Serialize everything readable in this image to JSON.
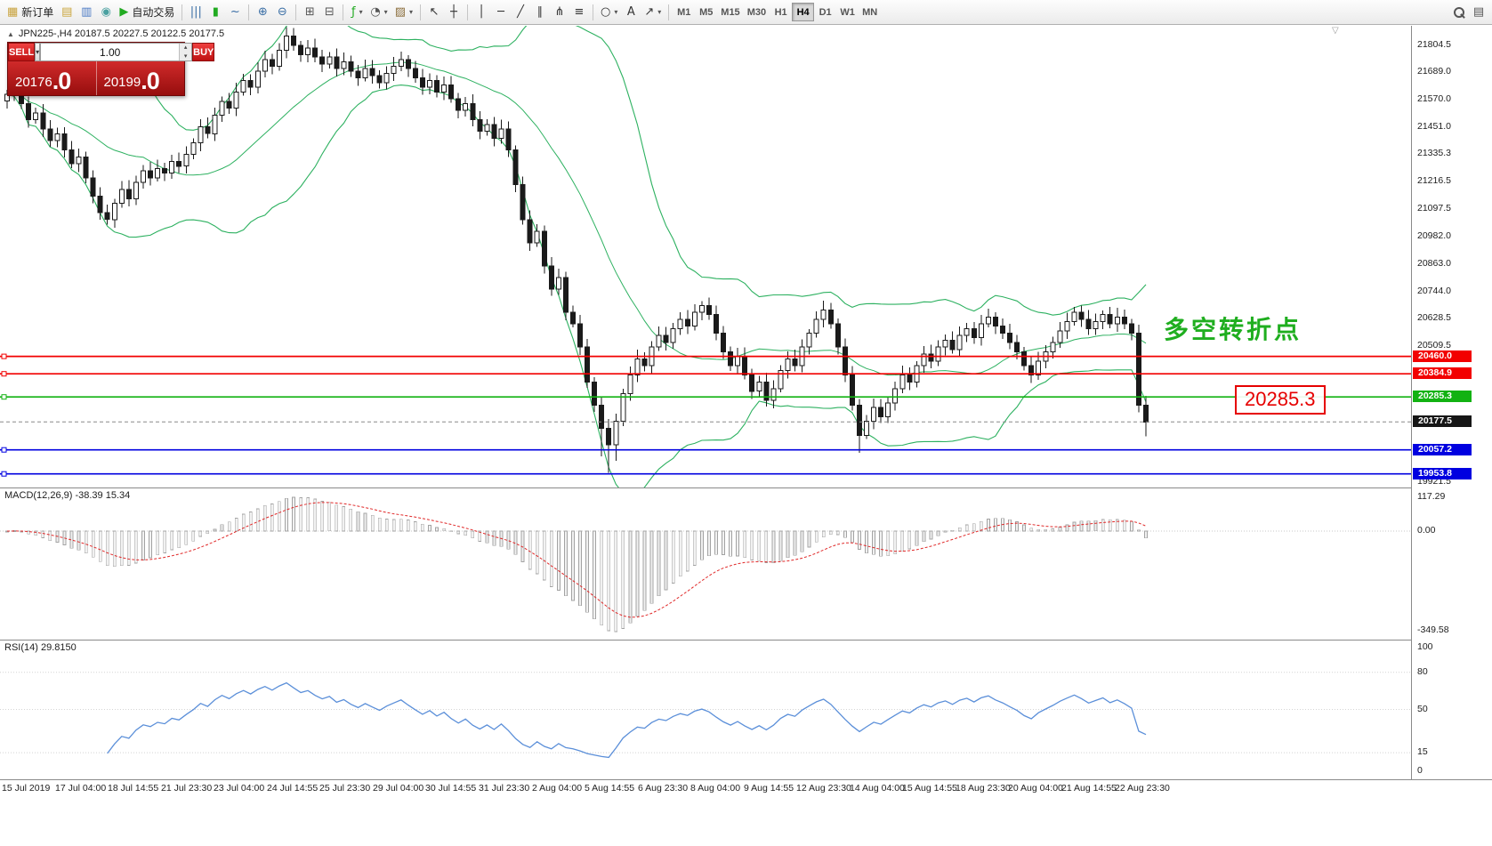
{
  "icons": {
    "chevron_down": "▾",
    "chevron_up": "▴",
    "triangle_up": "▲",
    "triangle_down_small": "▽",
    "data_window": "▤"
  },
  "toolbar": {
    "groups": [
      {
        "items": [
          {
            "name": "new-order-button",
            "icon": "new-order-icon",
            "glyph": "▦",
            "color": "#c8a23c",
            "label": "新订单"
          },
          {
            "name": "chart-window-button",
            "icon": "chart-window-icon",
            "glyph": "▤",
            "color": "#caa53c"
          },
          {
            "name": "profiles-button",
            "icon": "profiles-icon",
            "glyph": "▥",
            "color": "#4a79c4"
          },
          {
            "name": "alerts-button",
            "icon": "speaker-icon",
            "glyph": "◉",
            "color": "#4aa0a0"
          },
          {
            "name": "autotrading-button",
            "icon": "play-icon",
            "glyph": "▶",
            "color": "#21aa21",
            "label": "自动交易"
          }
        ]
      },
      {
        "items": [
          {
            "name": "bar-chart-button",
            "icon": "bars-icon",
            "glyph": "|||",
            "color": "#3a6ea5"
          },
          {
            "name": "candlestick-button",
            "icon": "candlestick-icon",
            "glyph": "▮",
            "color": "#21aa21"
          },
          {
            "name": "line-chart-button",
            "icon": "line-chart-icon",
            "glyph": "~",
            "color": "#3a6ea5"
          }
        ]
      },
      {
        "items": [
          {
            "name": "zoom-in-button",
            "icon": "zoom-in-icon",
            "glyph": "⊕",
            "color": "#3a6ea5"
          },
          {
            "name": "zoom-out-button",
            "icon": "zoom-out-icon",
            "glyph": "⊖",
            "color": "#3a6ea5"
          }
        ]
      },
      {
        "items": [
          {
            "name": "tile-windows-button",
            "icon": "tile-windows-icon",
            "glyph": "⊞",
            "color": "#555555"
          },
          {
            "name": "cascade-windows-button",
            "icon": "cascade-windows-icon",
            "glyph": "⊟",
            "color": "#555555"
          }
        ]
      },
      {
        "items": [
          {
            "name": "indicators-button",
            "icon": "indicator-icon",
            "glyph": "ƒ",
            "color": "#21aa21",
            "caret": true
          },
          {
            "name": "periods-button",
            "icon": "clock-icon",
            "glyph": "◔",
            "color": "#555555",
            "caret": true
          },
          {
            "name": "templates-button",
            "icon": "template-icon",
            "glyph": "▨",
            "color": "#8a6d3b",
            "caret": true
          }
        ]
      },
      {
        "items": [
          {
            "name": "cursor-button",
            "icon": "cursor-icon",
            "glyph": "↖",
            "color": "#333333"
          },
          {
            "name": "crosshair-button",
            "icon": "crosshair-icon",
            "glyph": "┼",
            "color": "#333333"
          }
        ]
      },
      {
        "items": [
          {
            "name": "vertical-line-button",
            "icon": "vertical-line-icon",
            "glyph": "│",
            "color": "#333333"
          },
          {
            "name": "horizontal-line-button",
            "icon": "horizontal-line-icon",
            "glyph": "─",
            "color": "#333333"
          },
          {
            "name": "trendline-button",
            "icon": "trendline-icon",
            "glyph": "╱",
            "color": "#333333"
          },
          {
            "name": "channel-button",
            "icon": "channel-icon",
            "glyph": "∥",
            "color": "#333333"
          },
          {
            "name": "pitchfork-button",
            "icon": "pitchfork-icon",
            "glyph": "⋔",
            "color": "#333333"
          },
          {
            "name": "fibonacci-button",
            "icon": "fibonacci-icon",
            "glyph": "≡",
            "color": "#333333"
          }
        ]
      },
      {
        "items": [
          {
            "name": "shapes-button",
            "icon": "shapes-icon",
            "glyph": "○",
            "color": "#333333",
            "caret": true
          },
          {
            "name": "text-button",
            "icon": "text-icon",
            "glyph": "A",
            "color": "#333333"
          },
          {
            "name": "arrows-button",
            "icon": "arrow-icon",
            "glyph": "↗",
            "color": "#333333",
            "caret": true
          }
        ]
      }
    ],
    "timeframes": [
      "M1",
      "M5",
      "M15",
      "M30",
      "H1",
      "H4",
      "D1",
      "W1",
      "MN"
    ],
    "active_timeframe": "H4"
  },
  "symbol_info": "JPN225-,H4  20187.5 20227.5 20122.5 20177.5",
  "trade_panel": {
    "sell_label": "SELL",
    "buy_label": "BUY",
    "volume": "1.00",
    "sell_price_main": "20176",
    "sell_price_dec": ".0",
    "buy_price_main": "20199",
    "buy_price_dec": ".0"
  },
  "annotation": {
    "text": "多空转折点",
    "color": "#1fae1f"
  },
  "callout": {
    "text": "20285.3",
    "color": "#e60000"
  },
  "price_axis": {
    "ticks": [
      "21804.5",
      "21689.0",
      "21570.0",
      "21451.0",
      "21335.3",
      "21216.5",
      "21097.5",
      "20982.0",
      "20863.0",
      "20744.0",
      "20628.5",
      "20509.5",
      "19921.5"
    ]
  },
  "levels": [
    {
      "value": 20460.0,
      "label": "20460.0",
      "color": "#f20000"
    },
    {
      "value": 20384.9,
      "label": "20384.9",
      "color": "#f20000"
    },
    {
      "value": 20285.3,
      "label": "20285.3",
      "color": "#12b212"
    },
    {
      "value": 20057.2,
      "label": "20057.2",
      "color": "#0000e0"
    },
    {
      "value": 19953.8,
      "label": "19953.8",
      "color": "#0000e0"
    }
  ],
  "current_price": {
    "value": 20177.5,
    "label": "20177.5"
  },
  "macd": {
    "label": "MACD(12,26,9) -38.39 15.34",
    "axis_top": "117.29",
    "axis_zero": "0.00",
    "axis_bottom": "-349.58"
  },
  "rsi": {
    "label": "RSI(14) 29.8150",
    "axis": [
      {
        "v": 100,
        "t": "100"
      },
      {
        "v": 80,
        "t": "80"
      },
      {
        "v": 50,
        "t": "50"
      },
      {
        "v": 15,
        "t": "15"
      },
      {
        "v": 0,
        "t": "0"
      }
    ],
    "levels": [
      80,
      50,
      15
    ]
  },
  "time_axis": [
    "15 Jul 2019",
    "17 Jul 04:00",
    "18 Jul 14:55",
    "21 Jul 23:30",
    "23 Jul 04:00",
    "24 Jul 14:55",
    "25 Jul 23:30",
    "29 Jul 04:00",
    "30 Jul 14:55",
    "31 Jul 23:30",
    "2 Aug 04:00",
    "5 Aug 14:55",
    "6 Aug 23:30",
    "8 Aug 04:00",
    "9 Aug 14:55",
    "12 Aug 23:30",
    "14 Aug 04:00",
    "15 Aug 14:55",
    "18 Aug 23:30",
    "20 Aug 04:00",
    "21 Aug 14:55",
    "22 Aug 23:30"
  ],
  "chart_data": {
    "type": "candlestick",
    "symbol": "JPN225-",
    "timeframe": "H4",
    "last_candle_ohlc": {
      "open": 20187.5,
      "high": 20227.5,
      "low": 20122.5,
      "close": 20177.5
    },
    "price_range": [
      19895,
      21885
    ],
    "first_open": 21560,
    "closes": [
      21590,
      21610,
      21550,
      21480,
      21510,
      21440,
      21390,
      21420,
      21350,
      21290,
      21320,
      21230,
      21150,
      21080,
      21050,
      21120,
      21180,
      21140,
      21210,
      21260,
      21230,
      21270,
      21250,
      21300,
      21280,
      21330,
      21380,
      21450,
      21420,
      21500,
      21560,
      21530,
      21600,
      21650,
      21620,
      21690,
      21740,
      21710,
      21780,
      21840,
      21800,
      21760,
      21790,
      21750,
      21720,
      21750,
      21700,
      21730,
      21690,
      21660,
      21700,
      21670,
      21640,
      21680,
      21710,
      21740,
      21700,
      21660,
      21620,
      21650,
      21600,
      21630,
      21570,
      21520,
      21550,
      21480,
      21430,
      21460,
      21400,
      21440,
      21350,
      21200,
      21050,
      20950,
      21000,
      20850,
      20750,
      20800,
      20650,
      20600,
      20500,
      20350,
      20250,
      20150,
      20080,
      20180,
      20300,
      20380,
      20450,
      20420,
      20500,
      20550,
      20520,
      20580,
      20620,
      20590,
      20650,
      20680,
      20640,
      20560,
      20480,
      20420,
      20460,
      20380,
      20310,
      20350,
      20270,
      20320,
      20400,
      20450,
      20420,
      20500,
      20560,
      20620,
      20660,
      20600,
      20500,
      20380,
      20250,
      20120,
      20180,
      20240,
      20200,
      20260,
      20320,
      20380,
      20350,
      20420,
      20470,
      20440,
      20500,
      20530,
      20490,
      20550,
      20580,
      20540,
      20600,
      20630,
      20590,
      20560,
      20520,
      20480,
      20420,
      20380,
      20440,
      20480,
      20520,
      20570,
      20610,
      20650,
      20620,
      20580,
      20610,
      20640,
      20600,
      20630,
      20600,
      20560,
      20250,
      20177.5
    ],
    "wick_overrides": {
      "83": {
        "low": 20030
      },
      "84": {
        "low": 19958
      },
      "85": {
        "low": 20010
      },
      "119": {
        "low": 20045
      },
      "159": {
        "low": 20115
      }
    },
    "bollinger": {
      "period": 20,
      "deviation": 2
    },
    "macd_params": {
      "fast": 12,
      "slow": 26,
      "signal": 9
    },
    "rsi_params": {
      "period": 14
    }
  }
}
